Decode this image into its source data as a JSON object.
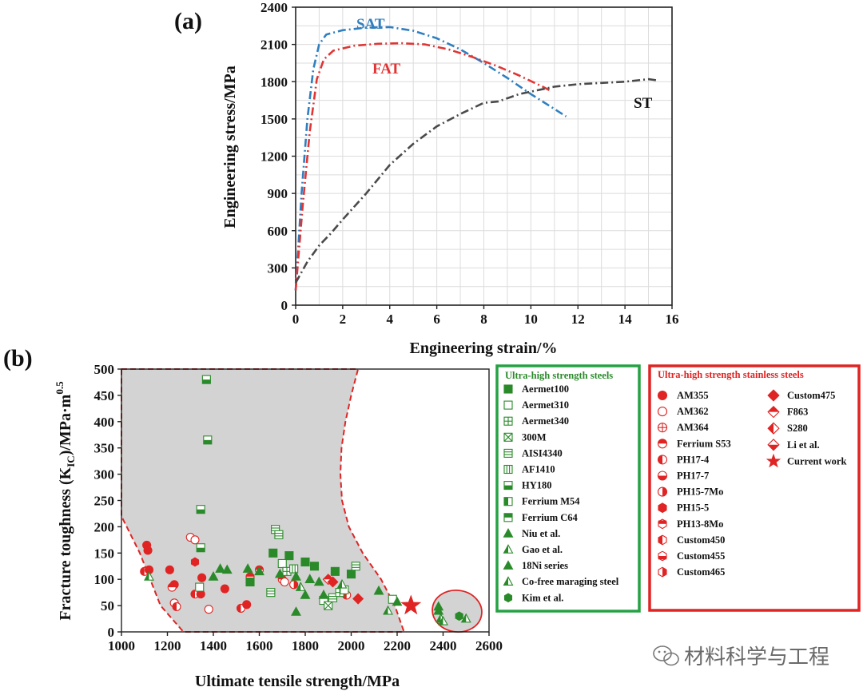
{
  "chart_data": [
    {
      "panel_label": "(a)",
      "type": "line",
      "xlabel": "Engineering strain/%",
      "ylabel": "Engineering stress/MPa",
      "xlim": [
        0,
        16
      ],
      "ylim": [
        0,
        2400
      ],
      "x_ticks": [
        "0",
        "2",
        "4",
        "6",
        "8",
        "10",
        "12",
        "14",
        "16"
      ],
      "y_ticks": [
        "0",
        "300",
        "600",
        "900",
        "1200",
        "1500",
        "1800",
        "2100",
        "2400"
      ],
      "grid": true,
      "series": [
        {
          "name": "SAT",
          "color": "#2f7fc0",
          "points": [
            [
              0,
              120
            ],
            [
              0.25,
              900
            ],
            [
              0.5,
              1500
            ],
            [
              0.75,
              1900
            ],
            [
              1.0,
              2100
            ],
            [
              1.3,
              2180
            ],
            [
              2.0,
              2215
            ],
            [
              3.0,
              2235
            ],
            [
              4.0,
              2240
            ],
            [
              5.0,
              2210
            ],
            [
              6.0,
              2150
            ],
            [
              7.0,
              2060
            ],
            [
              8.0,
              1950
            ],
            [
              9.0,
              1830
            ],
            [
              10.0,
              1700
            ],
            [
              11.0,
              1580
            ],
            [
              11.5,
              1520
            ]
          ]
        },
        {
          "name": "FAT",
          "color": "#e03535",
          "points": [
            [
              0,
              120
            ],
            [
              0.3,
              800
            ],
            [
              0.6,
              1400
            ],
            [
              0.9,
              1820
            ],
            [
              1.2,
              1980
            ],
            [
              1.6,
              2050
            ],
            [
              2.5,
              2090
            ],
            [
              3.5,
              2105
            ],
            [
              4.5,
              2110
            ],
            [
              5.5,
              2100
            ],
            [
              6.5,
              2060
            ],
            [
              7.5,
              2000
            ],
            [
              8.5,
              1930
            ],
            [
              9.5,
              1850
            ],
            [
              10.5,
              1760
            ],
            [
              10.8,
              1730
            ]
          ]
        },
        {
          "name": "ST",
          "color": "#4a4a4a",
          "points": [
            [
              0,
              180
            ],
            [
              0.5,
              350
            ],
            [
              1.0,
              480
            ],
            [
              1.5,
              580
            ],
            [
              2.0,
              690
            ],
            [
              3.0,
              900
            ],
            [
              4.0,
              1130
            ],
            [
              5.0,
              1300
            ],
            [
              6.0,
              1440
            ],
            [
              7.0,
              1540
            ],
            [
              8.0,
              1630
            ],
            [
              8.6,
              1640
            ],
            [
              9.5,
              1700
            ],
            [
              10.0,
              1720
            ],
            [
              11.0,
              1760
            ],
            [
              12.0,
              1780
            ],
            [
              13.0,
              1790
            ],
            [
              14.0,
              1800
            ],
            [
              15.0,
              1820
            ],
            [
              15.4,
              1810
            ]
          ]
        }
      ]
    },
    {
      "panel_label": "(b)",
      "type": "scatter",
      "xlabel": "Ultimate tensile strength/MPa",
      "ylabel_main": "Fracture toughness (K",
      "ylabel_sub": "IC",
      "ylabel_tail": ")/MPa·m",
      "ylabel_sup": "0.5",
      "xlim": [
        1000,
        2600
      ],
      "ylim": [
        0,
        500
      ],
      "x_ticks": [
        "1000",
        "1200",
        "1400",
        "1600",
        "1800",
        "2000",
        "2200",
        "2400",
        "2600"
      ],
      "y_ticks": [
        "0",
        "50",
        "100",
        "150",
        "200",
        "250",
        "300",
        "350",
        "400",
        "450",
        "500"
      ],
      "legend_green_title": "Ultra-high strength steels",
      "legend_red_title": "Ultra-high strength stainless steels",
      "legend_green": [
        {
          "name": "Aermet100",
          "marker": "sq-fill"
        },
        {
          "name": "Aermet310",
          "marker": "sq-open"
        },
        {
          "name": "Aermet340",
          "marker": "sq-plus"
        },
        {
          "name": "300M",
          "marker": "sq-x"
        },
        {
          "name": "AISI4340",
          "marker": "sq-hlines"
        },
        {
          "name": "AF1410",
          "marker": "sq-vlines"
        },
        {
          "name": "HY180",
          "marker": "sq-bottom"
        },
        {
          "name": "Ferrium M54",
          "marker": "sq-left"
        },
        {
          "name": "Ferrium C64",
          "marker": "sq-top"
        },
        {
          "name": "Niu et al.",
          "marker": "tri-fill"
        },
        {
          "name": "Gao et al.",
          "marker": "tri-half"
        },
        {
          "name": "18Ni series",
          "marker": "tri-fill"
        },
        {
          "name": "Co-free maraging steel",
          "marker": "tri-half"
        },
        {
          "name": "Kim et al.",
          "marker": "hex-fill"
        }
      ],
      "legend_red_col1": [
        {
          "name": "AM355",
          "marker": "circ-fill"
        },
        {
          "name": "AM362",
          "marker": "circ-open"
        },
        {
          "name": "AM364",
          "marker": "circ-plus"
        },
        {
          "name": "Ferrium S53",
          "marker": "circ-top"
        },
        {
          "name": "PH17-4",
          "marker": "circ-left"
        },
        {
          "name": "PH17-7",
          "marker": "circ-bottom"
        },
        {
          "name": "PH15-7Mo",
          "marker": "circ-right"
        },
        {
          "name": "PH15-5",
          "marker": "hex-fill"
        },
        {
          "name": "PH13-8Mo",
          "marker": "hex-top"
        },
        {
          "name": "Custom450",
          "marker": "hex-left"
        },
        {
          "name": "Custom455",
          "marker": "hex-bottom"
        },
        {
          "name": "Custom465",
          "marker": "hex-right"
        }
      ],
      "legend_red_col2": [
        {
          "name": "Custom475",
          "marker": "dia-fill"
        },
        {
          "name": "F863",
          "marker": "dia-top"
        },
        {
          "name": "S280",
          "marker": "dia-left"
        },
        {
          "name": "Li et al.",
          "marker": "dia-bottom"
        },
        {
          "name": "Current work",
          "marker": "star"
        }
      ],
      "green_points": [
        {
          "x": 1370,
          "y": 480,
          "m": "sq-bottom"
        },
        {
          "x": 1375,
          "y": 365,
          "m": "sq-bottom"
        },
        {
          "x": 1345,
          "y": 233,
          "m": "sq-bottom"
        },
        {
          "x": 1345,
          "y": 160,
          "m": "sq-bottom"
        },
        {
          "x": 1340,
          "y": 85,
          "m": "sq-open"
        },
        {
          "x": 1660,
          "y": 150,
          "m": "sq-fill"
        },
        {
          "x": 1730,
          "y": 145,
          "m": "sq-fill"
        },
        {
          "x": 1800,
          "y": 133,
          "m": "sq-fill"
        },
        {
          "x": 1840,
          "y": 125,
          "m": "sq-fill"
        },
        {
          "x": 1930,
          "y": 115,
          "m": "sq-fill"
        },
        {
          "x": 2000,
          "y": 110,
          "m": "sq-fill"
        },
        {
          "x": 1560,
          "y": 95,
          "m": "sq-fill"
        },
        {
          "x": 1670,
          "y": 195,
          "m": "sq-hlines"
        },
        {
          "x": 1685,
          "y": 185,
          "m": "sq-hlines"
        },
        {
          "x": 1700,
          "y": 130,
          "m": "sq-open"
        },
        {
          "x": 1720,
          "y": 115,
          "m": "sq-plus"
        },
        {
          "x": 1750,
          "y": 120,
          "m": "sq-vlines"
        },
        {
          "x": 1650,
          "y": 75,
          "m": "sq-hlines"
        },
        {
          "x": 1880,
          "y": 60,
          "m": "sq-open"
        },
        {
          "x": 1900,
          "y": 50,
          "m": "sq-x"
        },
        {
          "x": 1920,
          "y": 65,
          "m": "sq-hlines"
        },
        {
          "x": 1950,
          "y": 75,
          "m": "sq-plus"
        },
        {
          "x": 1970,
          "y": 80,
          "m": "sq-open"
        },
        {
          "x": 2020,
          "y": 125,
          "m": "sq-hlines"
        },
        {
          "x": 2180,
          "y": 62,
          "m": "sq-open"
        },
        {
          "x": 1430,
          "y": 120,
          "m": "tri-fill"
        },
        {
          "x": 1460,
          "y": 118,
          "m": "tri-fill"
        },
        {
          "x": 1400,
          "y": 105,
          "m": "tri-fill"
        },
        {
          "x": 1550,
          "y": 120,
          "m": "tri-fill"
        },
        {
          "x": 1600,
          "y": 115,
          "m": "tri-fill"
        },
        {
          "x": 1690,
          "y": 110,
          "m": "tri-fill"
        },
        {
          "x": 1760,
          "y": 105,
          "m": "tri-fill"
        },
        {
          "x": 1820,
          "y": 100,
          "m": "tri-fill"
        },
        {
          "x": 1860,
          "y": 95,
          "m": "tri-fill"
        },
        {
          "x": 1780,
          "y": 85,
          "m": "tri-half"
        },
        {
          "x": 1800,
          "y": 70,
          "m": "tri-fill"
        },
        {
          "x": 1880,
          "y": 70,
          "m": "tri-fill"
        },
        {
          "x": 1960,
          "y": 90,
          "m": "tri-half"
        },
        {
          "x": 1760,
          "y": 38,
          "m": "tri-fill"
        },
        {
          "x": 2120,
          "y": 78,
          "m": "tri-fill"
        },
        {
          "x": 2200,
          "y": 57,
          "m": "tri-fill"
        },
        {
          "x": 2160,
          "y": 40,
          "m": "tri-half"
        },
        {
          "x": 1120,
          "y": 105,
          "m": "tri-half"
        },
        {
          "x": 2380,
          "y": 48,
          "m": "tri-fill"
        },
        {
          "x": 2380,
          "y": 40,
          "m": "tri-fill"
        },
        {
          "x": 2390,
          "y": 25,
          "m": "tri-half"
        },
        {
          "x": 2400,
          "y": 20,
          "m": "tri-half"
        },
        {
          "x": 2500,
          "y": 25,
          "m": "tri-half"
        },
        {
          "x": 2470,
          "y": 30,
          "m": "hex-fill"
        }
      ],
      "red_points": [
        {
          "x": 1110,
          "y": 165,
          "m": "circ-fill"
        },
        {
          "x": 1115,
          "y": 155,
          "m": "circ-fill"
        },
        {
          "x": 1100,
          "y": 115,
          "m": "circ-left"
        },
        {
          "x": 1120,
          "y": 118,
          "m": "circ-fill"
        },
        {
          "x": 1210,
          "y": 118,
          "m": "circ-fill"
        },
        {
          "x": 1230,
          "y": 90,
          "m": "circ-fill"
        },
        {
          "x": 1220,
          "y": 85,
          "m": "circ-top"
        },
        {
          "x": 1230,
          "y": 55,
          "m": "circ-open"
        },
        {
          "x": 1240,
          "y": 48,
          "m": "circ-left"
        },
        {
          "x": 1300,
          "y": 180,
          "m": "circ-open"
        },
        {
          "x": 1320,
          "y": 175,
          "m": "circ-open"
        },
        {
          "x": 1320,
          "y": 133,
          "m": "hex-fill"
        },
        {
          "x": 1350,
          "y": 103,
          "m": "circ-fill"
        },
        {
          "x": 1320,
          "y": 72,
          "m": "circ-left"
        },
        {
          "x": 1345,
          "y": 72,
          "m": "circ-fill"
        },
        {
          "x": 1380,
          "y": 43,
          "m": "circ-open"
        },
        {
          "x": 1450,
          "y": 82,
          "m": "circ-fill"
        },
        {
          "x": 1520,
          "y": 45,
          "m": "circ-left"
        },
        {
          "x": 1545,
          "y": 52,
          "m": "circ-fill"
        },
        {
          "x": 1560,
          "y": 105,
          "m": "circ-top"
        },
        {
          "x": 1600,
          "y": 118,
          "m": "circ-top"
        },
        {
          "x": 1700,
          "y": 100,
          "m": "circ-top"
        },
        {
          "x": 1710,
          "y": 95,
          "m": "circ-open"
        },
        {
          "x": 1750,
          "y": 90,
          "m": "circ-right"
        },
        {
          "x": 1900,
          "y": 100,
          "m": "dia-top"
        },
        {
          "x": 1920,
          "y": 95,
          "m": "dia-fill"
        },
        {
          "x": 1960,
          "y": 75,
          "m": "circ-open"
        },
        {
          "x": 1980,
          "y": 70,
          "m": "circ-left"
        },
        {
          "x": 2030,
          "y": 63,
          "m": "dia-fill"
        }
      ],
      "current_work": {
        "x": 2260,
        "y": 50
      },
      "green_color": "#2a8a2a",
      "red_color": "#e02424",
      "region_fill": "#d3d3d3"
    }
  ],
  "watermark": "材料科学与工程",
  "watermark_icon": "wechat-icon"
}
